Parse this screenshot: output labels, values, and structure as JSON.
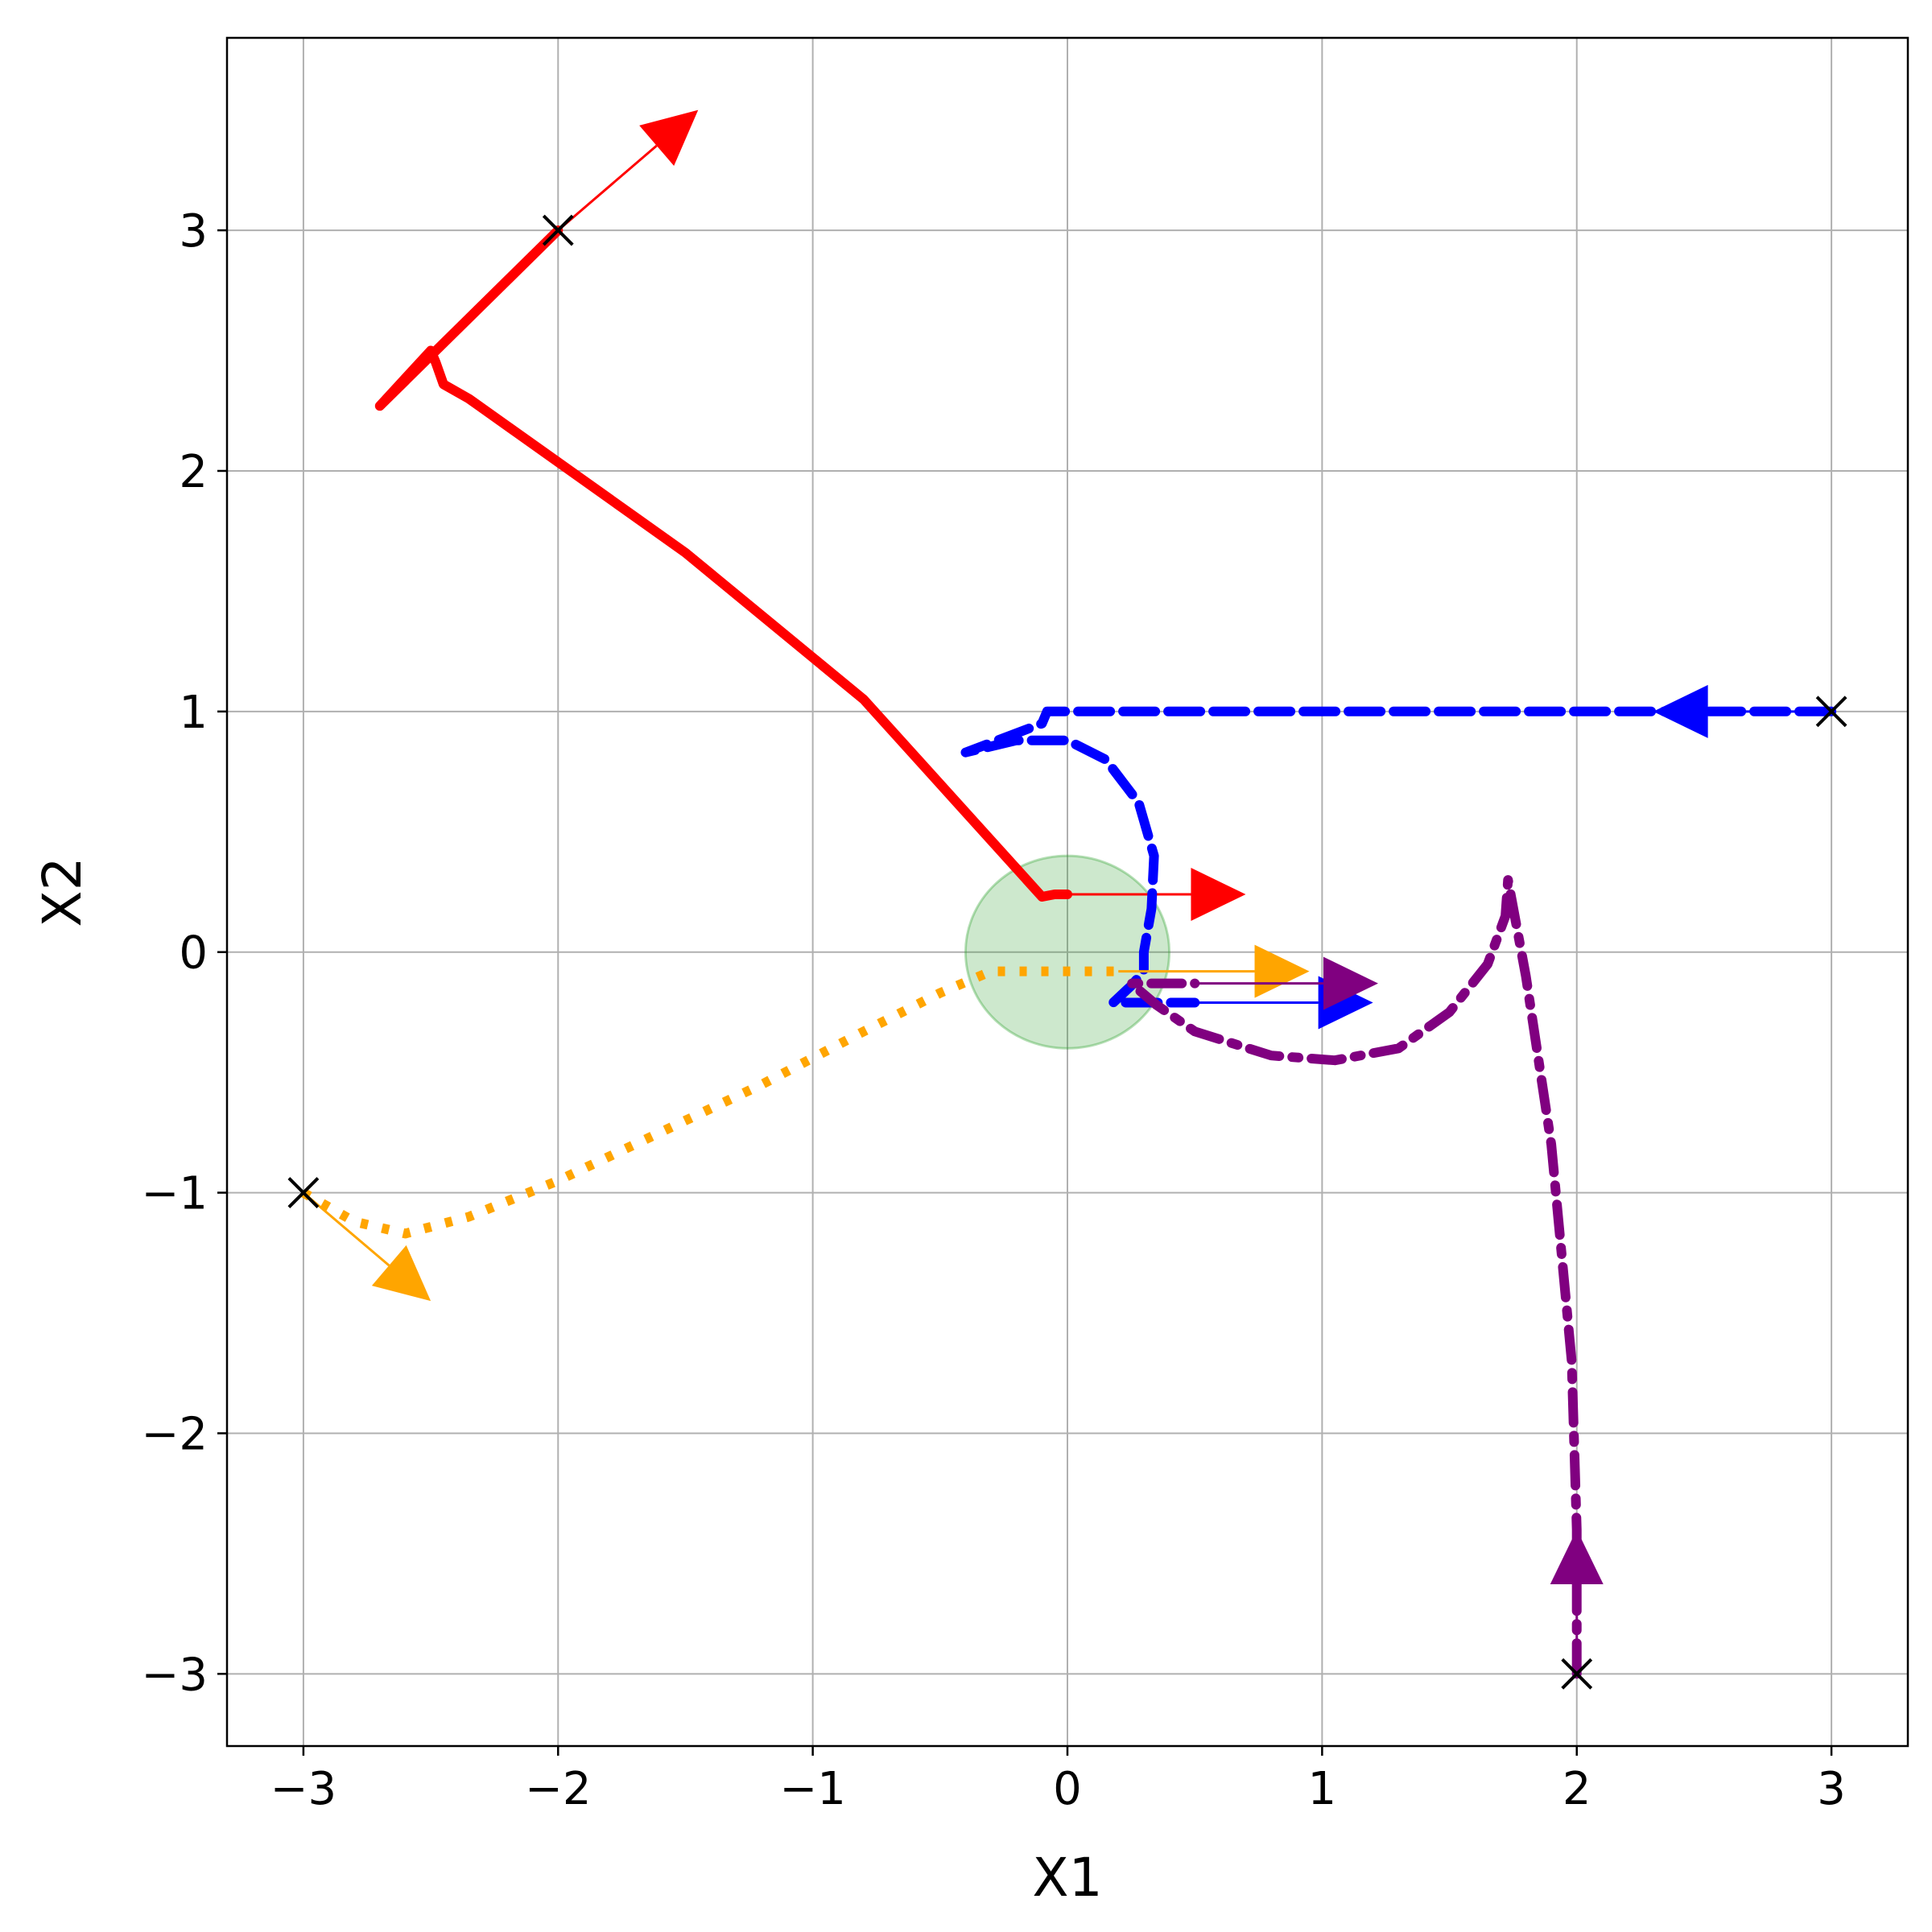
{
  "chart_data": {
    "type": "line",
    "title": "",
    "xlabel": "X1",
    "ylabel": "X2",
    "xlim": [
      -3.3,
      3.3
    ],
    "ylim": [
      -3.3,
      3.8
    ],
    "xticks": [
      -3,
      -2,
      -1,
      0,
      1,
      2,
      3
    ],
    "yticks": [
      -3,
      -2,
      -1,
      0,
      1,
      2,
      3
    ],
    "xtick_labels": [
      "−3",
      "−2",
      "−1",
      "0",
      "1",
      "2",
      "3"
    ],
    "ytick_labels": [
      "−3",
      "−2",
      "−1",
      "0",
      "1",
      "2",
      "3"
    ],
    "grid": true,
    "target_region": {
      "center": [
        0,
        0
      ],
      "radius": 0.4,
      "color": "#2ca02c"
    },
    "series": [
      {
        "color": "#ff0000",
        "style": "solid",
        "start": [
          -2,
          3
        ],
        "start_arrow": [
          0.55,
          0.5
        ],
        "end_arrow": [
          0.7,
          0
        ],
        "points": [
          [
            -2.0,
            3.0
          ],
          [
            -2.7,
            2.27
          ],
          [
            -2.5,
            2.5
          ],
          [
            -2.48,
            2.45
          ],
          [
            -2.45,
            2.36
          ],
          [
            -2.35,
            2.3
          ],
          [
            -1.5,
            1.66
          ],
          [
            -0.8,
            1.05
          ],
          [
            -0.1,
            0.23
          ],
          [
            -0.05,
            0.24
          ],
          [
            0.0,
            0.24
          ]
        ]
      },
      {
        "color": "#0000ff",
        "style": "dashed",
        "start": [
          3,
          1
        ],
        "start_arrow": [
          -0.7,
          0
        ],
        "end_arrow": [
          0.7,
          0
        ],
        "points": [
          [
            3.0,
            1.0
          ],
          [
            2.4,
            1.0
          ],
          [
            1.5,
            1.0
          ],
          [
            0.5,
            1.0
          ],
          [
            -0.08,
            1.0
          ],
          [
            -0.1,
            0.95
          ],
          [
            -0.4,
            0.83
          ],
          [
            -0.2,
            0.88
          ],
          [
            0.0,
            0.88
          ],
          [
            0.15,
            0.8
          ],
          [
            0.28,
            0.62
          ],
          [
            0.34,
            0.4
          ],
          [
            0.33,
            0.18
          ],
          [
            0.3,
            0.0
          ],
          [
            0.3,
            -0.08
          ],
          [
            0.25,
            -0.14
          ],
          [
            0.18,
            -0.21
          ],
          [
            0.3,
            -0.21
          ],
          [
            0.5,
            -0.21
          ]
        ]
      },
      {
        "color": "#ffa500",
        "style": "dotted",
        "start": [
          -3,
          -1
        ],
        "start_arrow": [
          0.5,
          -0.45
        ],
        "end_arrow": [
          0.75,
          0
        ],
        "points": [
          [
            -3.0,
            -1.0
          ],
          [
            -2.8,
            -1.12
          ],
          [
            -2.6,
            -1.17
          ],
          [
            -2.35,
            -1.1
          ],
          [
            -2.0,
            -0.95
          ],
          [
            -1.6,
            -0.75
          ],
          [
            -1.2,
            -0.55
          ],
          [
            -0.8,
            -0.33
          ],
          [
            -0.5,
            -0.17
          ],
          [
            -0.3,
            -0.08
          ],
          [
            -0.1,
            -0.08
          ],
          [
            0.2,
            -0.08
          ]
        ]
      },
      {
        "color": "#800080",
        "style": "dashdot",
        "start": [
          2,
          -3
        ],
        "start_arrow": [
          0,
          0.6
        ],
        "end_arrow": [
          0.72,
          0
        ],
        "points": [
          [
            2.0,
            -3.0
          ],
          [
            2.0,
            -2.4
          ],
          [
            1.98,
            -1.7
          ],
          [
            1.9,
            -0.8
          ],
          [
            1.8,
            -0.1
          ],
          [
            1.73,
            0.3
          ],
          [
            1.72,
            0.15
          ],
          [
            1.65,
            -0.05
          ],
          [
            1.5,
            -0.25
          ],
          [
            1.3,
            -0.4
          ],
          [
            1.05,
            -0.45
          ],
          [
            0.8,
            -0.43
          ],
          [
            0.5,
            -0.33
          ],
          [
            0.35,
            -0.22
          ],
          [
            0.25,
            -0.13
          ],
          [
            0.3,
            -0.13
          ],
          [
            0.5,
            -0.13
          ]
        ]
      }
    ]
  }
}
